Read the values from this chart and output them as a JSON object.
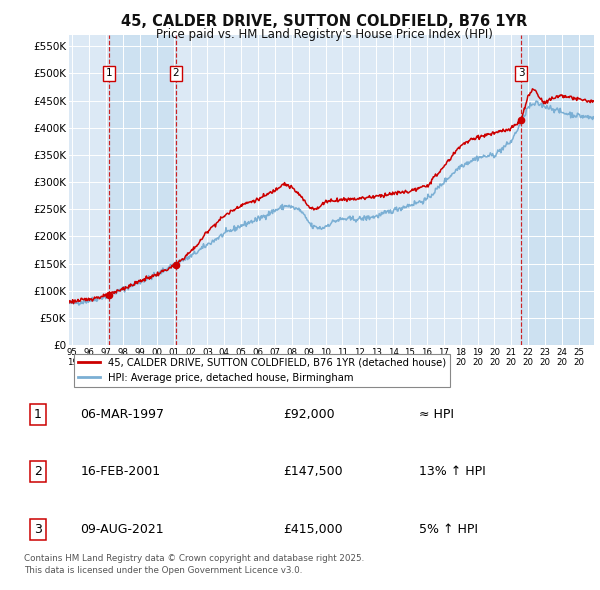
{
  "title": "45, CALDER DRIVE, SUTTON COLDFIELD, B76 1YR",
  "subtitle": "Price paid vs. HM Land Registry's House Price Index (HPI)",
  "background_color": "#ffffff",
  "plot_bg_color": "#dce9f5",
  "grid_color": "#ffffff",
  "line1_color": "#cc0000",
  "line2_color": "#7bafd4",
  "purchases": [
    {
      "date_year": 1997.18,
      "price": 92000,
      "label": "1"
    },
    {
      "date_year": 2001.12,
      "price": 147500,
      "label": "2"
    },
    {
      "date_year": 2021.6,
      "price": 415000,
      "label": "3"
    }
  ],
  "purchase_labels": [
    {
      "num": "1",
      "date": "06-MAR-1997",
      "price": "£92,000",
      "hpi_text": "≈ HPI"
    },
    {
      "num": "2",
      "date": "16-FEB-2001",
      "price": "£147,500",
      "hpi_text": "13% ↑ HPI"
    },
    {
      "num": "3",
      "date": "09-AUG-2021",
      "price": "£415,000",
      "hpi_text": "5% ↑ HPI"
    }
  ],
  "legend_entry1": "45, CALDER DRIVE, SUTTON COLDFIELD, B76 1YR (detached house)",
  "legend_entry2": "HPI: Average price, detached house, Birmingham",
  "footnote": "Contains HM Land Registry data © Crown copyright and database right 2025.\nThis data is licensed under the Open Government Licence v3.0.",
  "ylim": [
    0,
    570000
  ],
  "yticks": [
    0,
    50000,
    100000,
    150000,
    200000,
    250000,
    300000,
    350000,
    400000,
    450000,
    500000,
    550000
  ],
  "ytick_labels": [
    "£0",
    "£50K",
    "£100K",
    "£150K",
    "£200K",
    "£250K",
    "£300K",
    "£350K",
    "£400K",
    "£450K",
    "£500K",
    "£550K"
  ],
  "xlim_start": 1994.8,
  "xlim_end": 2025.9,
  "xtick_years": [
    1995,
    1996,
    1997,
    1998,
    1999,
    2000,
    2001,
    2002,
    2003,
    2004,
    2005,
    2006,
    2007,
    2008,
    2009,
    2010,
    2011,
    2012,
    2013,
    2014,
    2015,
    2016,
    2017,
    2018,
    2019,
    2020,
    2021,
    2022,
    2023,
    2024,
    2025
  ],
  "shade_regions": [
    {
      "start": 1997.18,
      "end": 2001.12
    },
    {
      "start": 2021.6,
      "end": 2025.9
    }
  ]
}
